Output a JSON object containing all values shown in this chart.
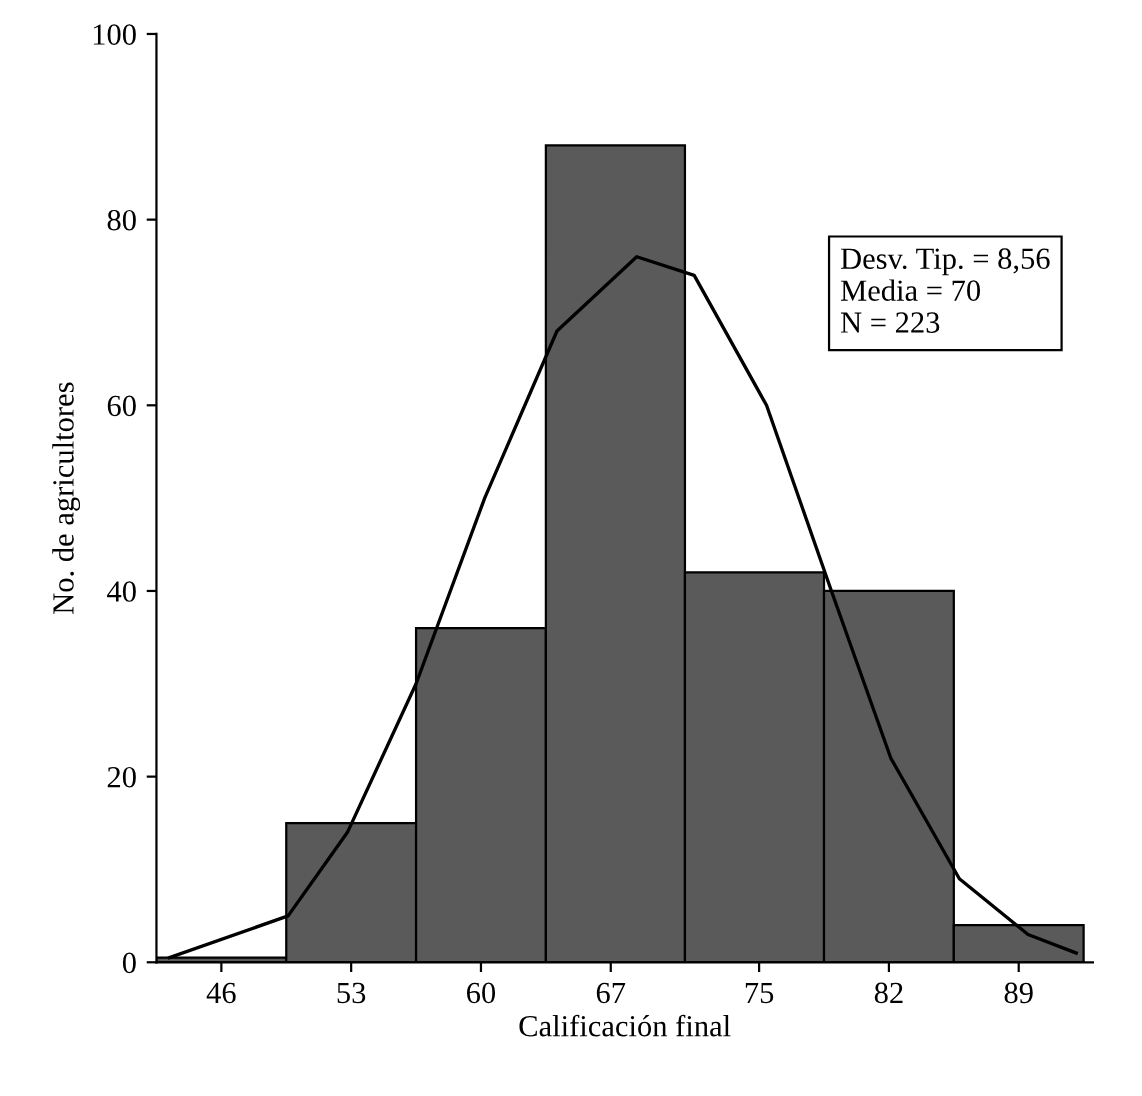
{
  "chart_data": {
    "type": "histogram",
    "xlabel": "Calificación final",
    "ylabel": "No. de agricultores",
    "bins": [
      42.5,
      49.5,
      56.5,
      63.5,
      71,
      78.5,
      85.5,
      92.5
    ],
    "series": [
      {
        "color": "#5a5a5a",
        "values": [
          0.5,
          15,
          36,
          88,
          42,
          40,
          4
        ]
      },
      {
        "type": "line",
        "color": "#000000",
        "x": [
          43.2,
          49.6,
          52.8,
          56.5,
          60.2,
          64.1,
          68.4,
          71.5,
          75.4,
          78.9,
          82.1,
          85.8,
          89.5,
          92.1
        ],
        "values": [
          0.5,
          5,
          14,
          30,
          50,
          68,
          76,
          74,
          60,
          40,
          22,
          9,
          3,
          1
        ]
      }
    ],
    "xlim": [
      42.5,
      93
    ],
    "xticks": [
      46,
      53,
      60,
      67,
      75,
      82,
      89
    ],
    "ylim": [
      0,
      100
    ],
    "yticks": [
      0,
      20,
      40,
      60,
      80,
      100
    ],
    "annotations": [
      "Desv. Tip. = 8,56\nMedia = 70\nN = 223"
    ],
    "grid": false,
    "legend": false
  }
}
